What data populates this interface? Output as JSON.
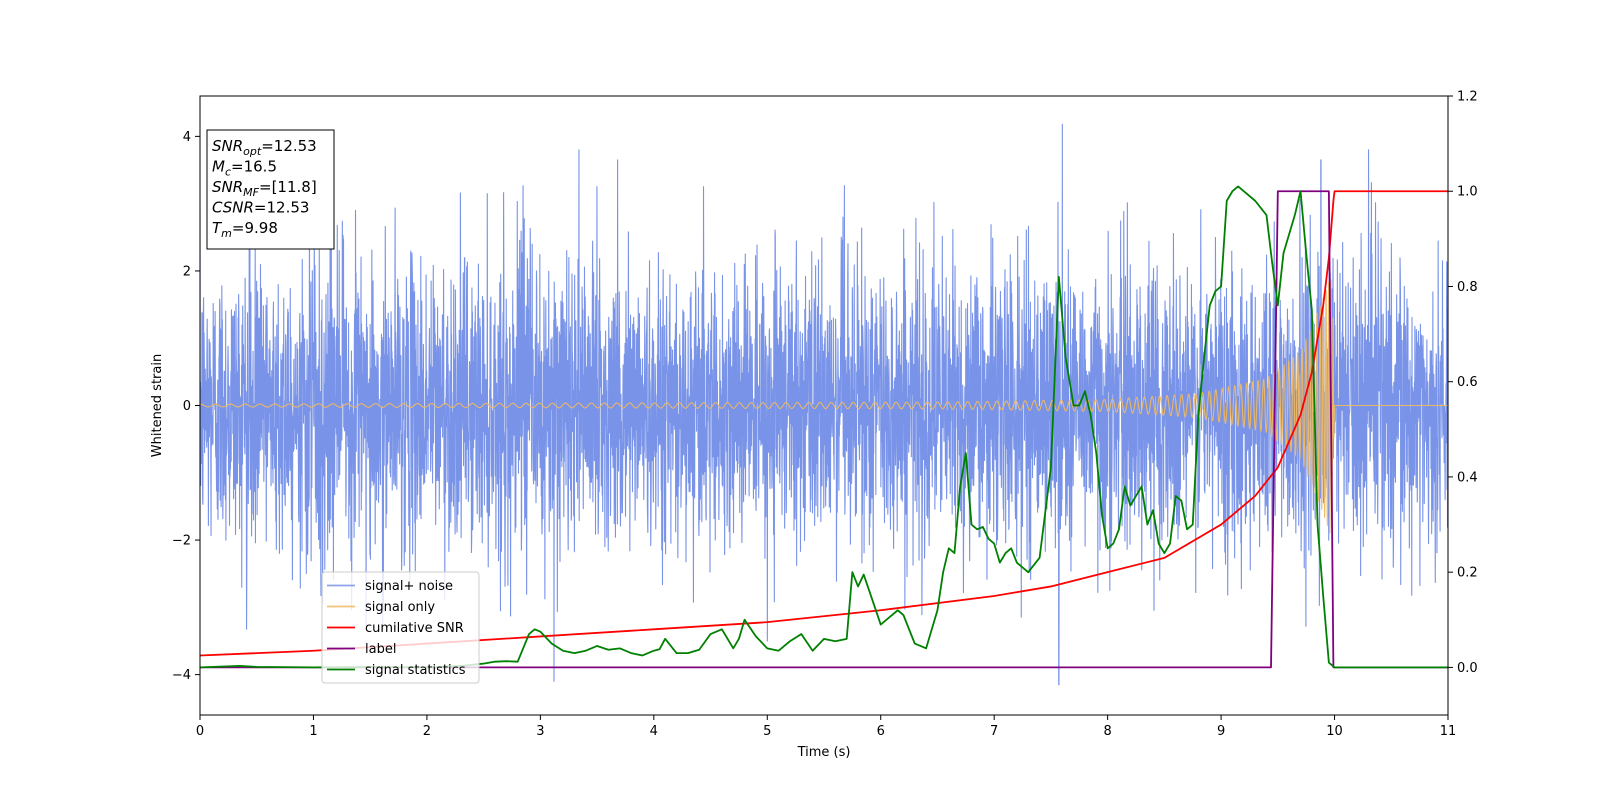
{
  "chart_data": {
    "type": "line",
    "title": "",
    "xlabel": "Time (s)",
    "ylabel": "Whitened strain",
    "xlim": [
      0,
      11
    ],
    "ylim": [
      -4.6,
      4.6
    ],
    "y2lim": [
      -0.1,
      1.2
    ],
    "x_ticks": [
      0,
      1,
      2,
      3,
      4,
      5,
      6,
      7,
      8,
      9,
      10,
      11
    ],
    "y_ticks": [
      -4,
      -2,
      0,
      2,
      4
    ],
    "y2_ticks": [
      0.0,
      0.2,
      0.4,
      0.6,
      0.8,
      1.0,
      1.2
    ],
    "y2_tick_labels": [
      "0.0",
      "0.2",
      "0.4",
      "0.6",
      "0.8",
      "1.0",
      "1.2"
    ],
    "grid": false,
    "legend_position": "lower-left",
    "info_box": {
      "position": "top-left",
      "lines": [
        {
          "sym": "SNR",
          "sub": "opt",
          "value": "=12.53"
        },
        {
          "sym": "M",
          "sub": "c",
          "value": "=16.5"
        },
        {
          "sym": "SNR",
          "sub": "MF",
          "value": "=[11.8]"
        },
        {
          "sym": "CSNR",
          "sub": "",
          "value": "=12.53"
        },
        {
          "sym": "T",
          "sub": "m",
          "value": "=9.98"
        }
      ]
    },
    "series": [
      {
        "name": "signal+ noise",
        "color": "#7893e8",
        "axis": "left",
        "kind": "noise",
        "x_range": [
          0,
          11
        ],
        "approx_std": 1.05,
        "max_abs": 4.2,
        "sample_peaks": [
          [
            1.37,
            2.9
          ],
          [
            3.34,
            3.8
          ],
          [
            3.68,
            3.65
          ],
          [
            7.6,
            4.18
          ],
          [
            9.88,
            3.65
          ],
          [
            10.3,
            3.8
          ],
          [
            3.12,
            -4.1
          ],
          [
            7.57,
            -4.15
          ],
          [
            5.0,
            -3.5
          ]
        ]
      },
      {
        "name": "signal only",
        "color": "#f0b860",
        "axis": "left",
        "kind": "chirp",
        "merger_time": 9.98,
        "samples": [
          [
            0,
            0.02
          ],
          [
            6.5,
            0.05
          ],
          [
            8.0,
            0.09
          ],
          [
            8.8,
            0.18
          ],
          [
            9.4,
            0.4
          ],
          [
            9.7,
            0.8
          ],
          [
            9.9,
            1.6
          ],
          [
            9.98,
            2.0
          ],
          [
            10.0,
            0.0
          ],
          [
            11,
            0.0
          ]
        ]
      },
      {
        "name": "cumilative SNR",
        "color": "#ff0000",
        "axis": "right",
        "x": [
          0,
          1,
          2,
          3,
          4,
          5,
          6,
          7,
          7.5,
          8,
          8.5,
          9,
          9.3,
          9.5,
          9.7,
          9.8,
          9.9,
          9.95,
          9.98,
          9.99,
          10.0,
          11
        ],
        "y": [
          0.025,
          0.035,
          0.05,
          0.065,
          0.08,
          0.095,
          0.12,
          0.15,
          0.17,
          0.2,
          0.23,
          0.3,
          0.36,
          0.42,
          0.53,
          0.62,
          0.76,
          0.86,
          0.95,
          0.98,
          1.0,
          1.0
        ]
      },
      {
        "name": "label",
        "color": "#800080",
        "axis": "right",
        "x": [
          0,
          9.44,
          9.5,
          9.95,
          9.99,
          11
        ],
        "y": [
          0.0,
          0.0,
          1.0,
          1.0,
          0.0,
          0.0
        ]
      },
      {
        "name": "signal statistics",
        "color": "#008000",
        "axis": "right",
        "x": [
          0,
          0.35,
          0.5,
          1.0,
          1.5,
          2.0,
          2.3,
          2.5,
          2.6,
          2.7,
          2.8,
          2.9,
          2.95,
          3.0,
          3.1,
          3.2,
          3.3,
          3.4,
          3.5,
          3.6,
          3.7,
          3.8,
          3.9,
          4.0,
          4.05,
          4.1,
          4.2,
          4.3,
          4.4,
          4.5,
          4.6,
          4.7,
          4.75,
          4.8,
          4.9,
          5.0,
          5.1,
          5.2,
          5.3,
          5.4,
          5.5,
          5.6,
          5.7,
          5.75,
          5.8,
          5.85,
          5.9,
          6.0,
          6.1,
          6.15,
          6.2,
          6.3,
          6.4,
          6.5,
          6.55,
          6.6,
          6.65,
          6.7,
          6.75,
          6.8,
          6.85,
          6.9,
          6.95,
          7.0,
          7.05,
          7.1,
          7.15,
          7.2,
          7.3,
          7.4,
          7.5,
          7.57,
          7.63,
          7.7,
          7.75,
          7.8,
          7.85,
          7.9,
          7.95,
          8.0,
          8.05,
          8.1,
          8.15,
          8.2,
          8.25,
          8.3,
          8.35,
          8.4,
          8.45,
          8.5,
          8.55,
          8.6,
          8.65,
          8.7,
          8.75,
          8.8,
          8.85,
          8.9,
          8.95,
          9.0,
          9.05,
          9.1,
          9.15,
          9.2,
          9.3,
          9.4,
          9.45,
          9.5,
          9.55,
          9.6,
          9.65,
          9.7,
          9.75,
          9.8,
          9.85,
          9.9,
          9.95,
          10.0,
          10.05,
          11
        ],
        "y": [
          0.0,
          0.003,
          0.001,
          0.0,
          0.001,
          0.0,
          0.003,
          0.008,
          0.012,
          0.013,
          0.012,
          0.07,
          0.08,
          0.075,
          0.05,
          0.035,
          0.03,
          0.035,
          0.045,
          0.037,
          0.04,
          0.03,
          0.025,
          0.035,
          0.038,
          0.06,
          0.03,
          0.03,
          0.037,
          0.07,
          0.08,
          0.04,
          0.06,
          0.1,
          0.065,
          0.04,
          0.035,
          0.055,
          0.07,
          0.035,
          0.06,
          0.055,
          0.06,
          0.2,
          0.17,
          0.195,
          0.16,
          0.09,
          0.11,
          0.12,
          0.11,
          0.05,
          0.04,
          0.12,
          0.2,
          0.25,
          0.24,
          0.38,
          0.45,
          0.3,
          0.29,
          0.295,
          0.27,
          0.26,
          0.22,
          0.24,
          0.25,
          0.22,
          0.2,
          0.23,
          0.42,
          0.82,
          0.65,
          0.55,
          0.55,
          0.58,
          0.53,
          0.45,
          0.32,
          0.25,
          0.26,
          0.29,
          0.38,
          0.34,
          0.36,
          0.38,
          0.3,
          0.33,
          0.26,
          0.24,
          0.26,
          0.36,
          0.35,
          0.29,
          0.3,
          0.53,
          0.65,
          0.76,
          0.79,
          0.8,
          0.98,
          1.0,
          1.01,
          1.0,
          0.98,
          0.95,
          0.85,
          0.76,
          0.87,
          0.91,
          0.95,
          1.0,
          0.87,
          0.75,
          0.3,
          0.15,
          0.01,
          0.0,
          0.0,
          0.0
        ]
      }
    ]
  }
}
